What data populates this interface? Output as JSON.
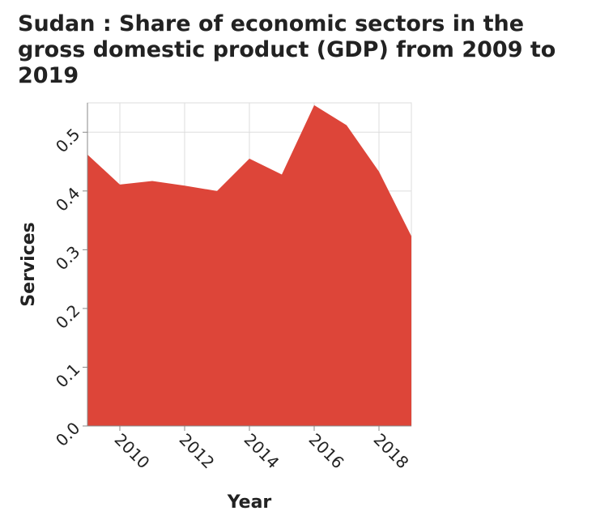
{
  "chart_data": {
    "type": "area",
    "title": "Sudan : Share of economic sectors in the gross domestic product (GDP) from 2009 to 2019",
    "xlabel": "Year",
    "ylabel": "Services",
    "x": [
      2009,
      2010,
      2011,
      2012,
      2013,
      2014,
      2015,
      2016,
      2017,
      2018,
      2019
    ],
    "series": [
      {
        "values": [
          0.462,
          0.411,
          0.417,
          0.409,
          0.4,
          0.455,
          0.428,
          0.546,
          0.512,
          0.433,
          0.323
        ]
      }
    ],
    "xlim": [
      2009,
      2019
    ],
    "ylim": [
      0,
      0.55
    ],
    "x_ticks": [
      2010,
      2012,
      2014,
      2016,
      2018
    ],
    "y_ticks": [
      0.0,
      0.1,
      0.2,
      0.3,
      0.4,
      0.5
    ],
    "x_tick_labels": [
      "2010",
      "2012",
      "2014",
      "2016",
      "2018"
    ],
    "y_tick_labels": [
      "0.0",
      "0.1",
      "0.2",
      "0.3",
      "0.4",
      "0.5"
    ],
    "grid": true,
    "legend": "none",
    "colors": {
      "fill": "#dd4539",
      "grid": "#dddddd",
      "axis": "#888888"
    }
  }
}
